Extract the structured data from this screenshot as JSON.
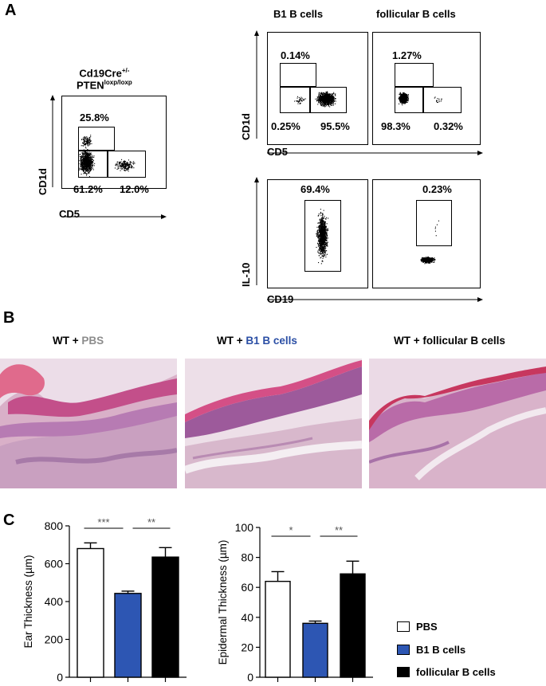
{
  "panels": {
    "a": "A",
    "b": "B",
    "c": "C"
  },
  "panel_a": {
    "left": {
      "title_line1": "Cd19Cre",
      "title_line1_sup": "+/-",
      "title_line2": "PTEN",
      "title_line2_sup": "loxp/loxp",
      "y_label": "CD1d",
      "x_label": "CD5",
      "pct_top": "25.8%",
      "pct_bottom_left": "61.2%",
      "pct_bottom_right": "12.0%"
    },
    "right": {
      "col1_title": "B1 B cells",
      "col2_title": "follicular B cells",
      "top_y_label": "CD1d",
      "top_x_label": "CD5",
      "b1_top": "0.14%",
      "b1_bottom_left": "0.25%",
      "b1_bottom_right": "95.5%",
      "fol_top": "1.27%",
      "fol_bottom_left": "98.3%",
      "fol_bottom_right": "0.32%",
      "bottom_y_label": "IL-10",
      "bottom_x_label": "CD19",
      "b1_il10": "69.4%",
      "fol_il10": "0.23%"
    }
  },
  "panel_b": {
    "t1_prefix": "WT + ",
    "t1_colored": "PBS",
    "t1_color": "#8c8c8c",
    "t2_prefix": "WT + ",
    "t2_colored": "B1 B cells",
    "t2_color": "#2b4fa5",
    "t3": "WT + follicular B cells"
  },
  "colors": {
    "pbs": "#ffffff",
    "b1": "#2d56b3",
    "follicular": "#000000"
  },
  "legend": {
    "pbs": "PBS",
    "b1": "B1 B cells",
    "follicular": "follicular B cells"
  },
  "chart_data": [
    {
      "type": "bar",
      "categories": [
        "PBS",
        "B1 B cells",
        "follicular B cells"
      ],
      "values": [
        680,
        443,
        635
      ],
      "errors": [
        30,
        12,
        50
      ],
      "ylabel": "Ear Thickness (µm)",
      "ylim": [
        0,
        800
      ],
      "yticks": [
        0,
        200,
        400,
        600,
        800
      ],
      "significance": [
        {
          "from": 0,
          "to": 1,
          "label": "***"
        },
        {
          "from": 1,
          "to": 2,
          "label": "**"
        }
      ]
    },
    {
      "type": "bar",
      "categories": [
        "PBS",
        "B1 B cells",
        "follicular B cells"
      ],
      "values": [
        64,
        36,
        69
      ],
      "errors": [
        6.5,
        1.5,
        8.5
      ],
      "ylabel": "Epidermal Thickness (µm)",
      "ylim": [
        0,
        100
      ],
      "yticks": [
        0,
        20,
        40,
        60,
        80,
        100
      ],
      "significance": [
        {
          "from": 0,
          "to": 1,
          "label": "*"
        },
        {
          "from": 1,
          "to": 2,
          "label": "**"
        }
      ]
    }
  ]
}
